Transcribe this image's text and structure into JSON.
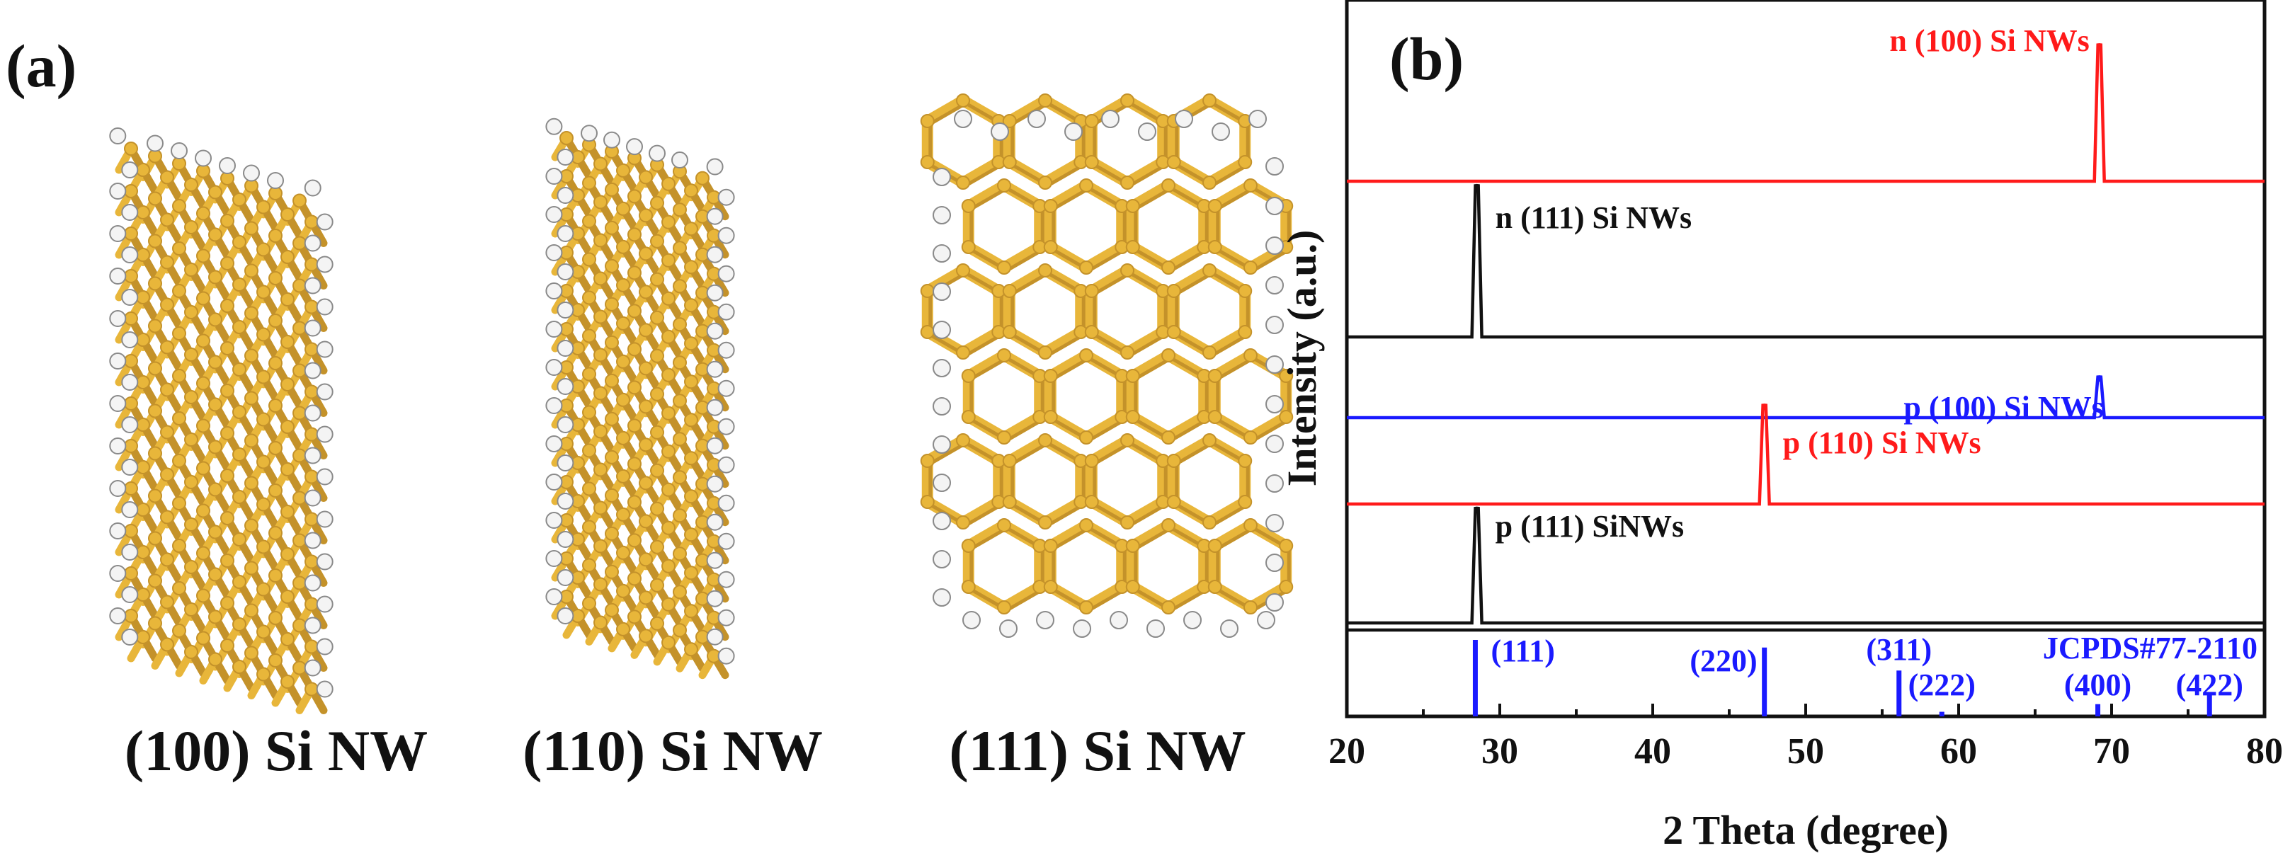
{
  "panel_a": {
    "letter": "(a)",
    "structures": [
      {
        "label": "(100) Si NW"
      },
      {
        "label": "(110) Si NW"
      },
      {
        "label": "(111) Si NW"
      }
    ]
  },
  "panel_b": {
    "letter": "(b)"
  },
  "chart_data": {
    "type": "line",
    "xlabel": "2 Theta (degree)",
    "ylabel": "Intensity (a.u.)",
    "xlim": [
      20,
      80
    ],
    "xticks": [
      "20",
      "30",
      "40",
      "50",
      "60",
      "70",
      "80"
    ],
    "series": [
      {
        "name": "n (100) Si NWs",
        "color": "#ff1a1a",
        "peaks": [
          {
            "x": 69.2,
            "h": 0.9
          }
        ]
      },
      {
        "name": "n (111) Si NWs",
        "color": "#111111",
        "peaks": [
          {
            "x": 28.5,
            "h": 0.98
          }
        ]
      },
      {
        "name": "p (100) Si NWs",
        "color": "#1a1aff",
        "peaks": [
          {
            "x": 69.2,
            "h": 0.52
          }
        ]
      },
      {
        "name": "p (110) Si NWs",
        "color": "#ff1a1a",
        "peaks": [
          {
            "x": 47.3,
            "h": 0.93
          }
        ]
      },
      {
        "name": "p (111) SiNWs",
        "color": "#111111",
        "peaks": [
          {
            "x": 28.5,
            "h": 0.9
          }
        ]
      }
    ],
    "reference": {
      "name": "JCPDS#77-2110",
      "color": "#1a1aff",
      "lines": [
        {
          "x": 28.4,
          "label": "(111)",
          "h": 1.0
        },
        {
          "x": 47.3,
          "label": "(220)",
          "h": 0.9
        },
        {
          "x": 56.1,
          "label": "(311)",
          "h": 0.6
        },
        {
          "x": 58.9,
          "label": "(222)",
          "h": 0.06
        },
        {
          "x": 69.1,
          "label": "(400)",
          "h": 0.16
        },
        {
          "x": 76.4,
          "label": "(422)",
          "h": 0.3
        }
      ]
    },
    "grid": false
  }
}
